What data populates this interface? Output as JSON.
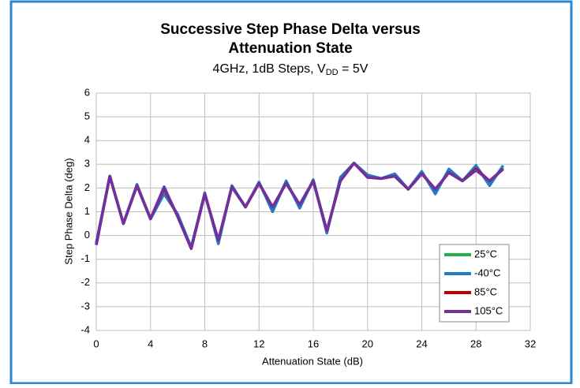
{
  "chart_data": {
    "type": "line",
    "title": [
      "Successive Step Phase Delta versus",
      "Attenuation State"
    ],
    "subtitle": [
      "4GHz, 1dB Steps, V",
      "DD",
      " = 5V"
    ],
    "x_label": "Attenuation State (dB)",
    "y_label": "Step Phase Delta (deg)",
    "x": [
      0,
      1,
      2,
      3,
      4,
      5,
      6,
      7,
      8,
      9,
      10,
      11,
      12,
      13,
      14,
      15,
      16,
      17,
      18,
      19,
      20,
      21,
      22,
      23,
      24,
      25,
      26,
      27,
      28,
      29,
      30
    ],
    "series": [
      {
        "name": "25°C",
        "color": "#22b14c",
        "values": [
          -0.35,
          2.5,
          0.5,
          2.1,
          0.7,
          1.95,
          0.85,
          -0.5,
          1.75,
          -0.25,
          2.05,
          1.2,
          2.2,
          1.15,
          2.25,
          1.25,
          2.3,
          0.15,
          2.35,
          3.05,
          2.5,
          2.4,
          2.55,
          1.95,
          2.65,
          1.9,
          2.7,
          2.3,
          2.85,
          2.25,
          2.85
        ]
      },
      {
        "name": "-40°C",
        "color": "#1f7ec4",
        "values": [
          -0.3,
          2.5,
          0.5,
          2.15,
          0.7,
          1.75,
          0.9,
          -0.5,
          1.8,
          -0.35,
          2.1,
          1.2,
          2.25,
          1.0,
          2.3,
          1.15,
          2.35,
          0.1,
          2.45,
          3.05,
          2.55,
          2.4,
          2.6,
          1.95,
          2.7,
          1.75,
          2.8,
          2.3,
          2.95,
          2.1,
          2.95
        ]
      },
      {
        "name": "85°C",
        "color": "#c00000",
        "values": [
          -0.4,
          2.5,
          0.5,
          2.1,
          0.7,
          2.0,
          0.8,
          -0.55,
          1.75,
          -0.2,
          2.05,
          1.2,
          2.2,
          1.2,
          2.2,
          1.3,
          2.3,
          0.2,
          2.3,
          3.05,
          2.45,
          2.4,
          2.5,
          1.95,
          2.6,
          1.95,
          2.65,
          2.3,
          2.8,
          2.3,
          2.8
        ]
      },
      {
        "name": "105°C",
        "color": "#7030a0",
        "values": [
          -0.4,
          2.5,
          0.5,
          2.1,
          0.7,
          2.05,
          0.8,
          -0.55,
          1.75,
          -0.2,
          2.05,
          1.2,
          2.2,
          1.2,
          2.2,
          1.3,
          2.3,
          0.2,
          2.3,
          3.05,
          2.45,
          2.4,
          2.5,
          1.95,
          2.6,
          1.95,
          2.65,
          2.3,
          2.75,
          2.3,
          2.8
        ]
      }
    ],
    "xlim": [
      0,
      32
    ],
    "xticks": [
      0,
      4,
      8,
      12,
      16,
      20,
      24,
      28,
      32
    ],
    "ylim": [
      -4,
      6
    ],
    "yticks": [
      -4,
      -3,
      -2,
      -1,
      0,
      1,
      2,
      3,
      4,
      5,
      6
    ],
    "grid": true,
    "legend": "lower right"
  }
}
